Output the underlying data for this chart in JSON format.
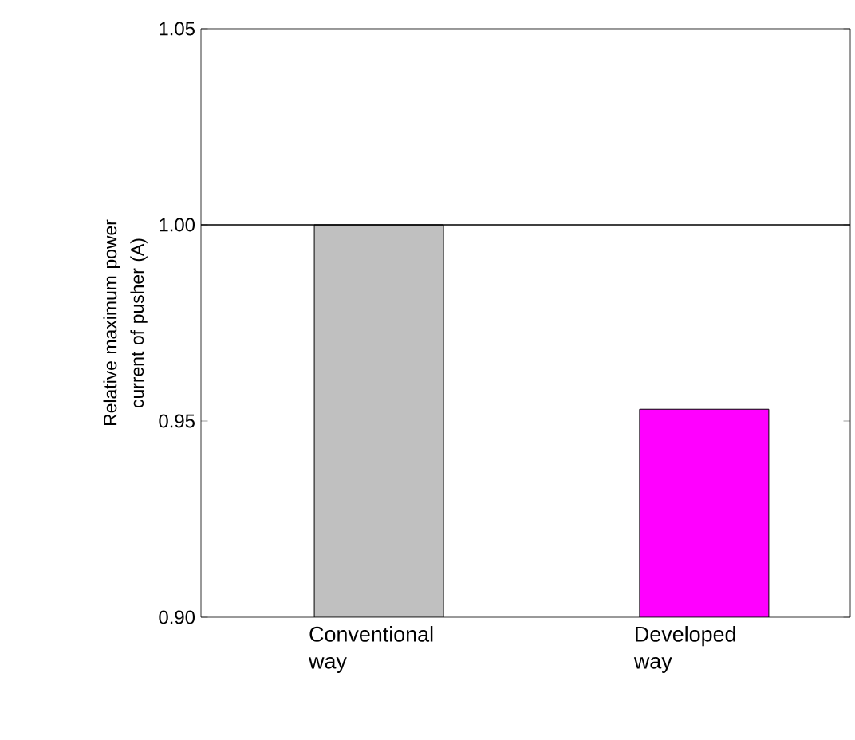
{
  "chart_data": {
    "type": "bar",
    "ylabel": "Relative maximum power current of pusher (A)",
    "categories": [
      "Conventional way",
      "Developed way"
    ],
    "values": [
      1.0,
      0.953
    ],
    "colors": [
      "#c0c0c0",
      "#ff00ff"
    ],
    "ylim": [
      0.9,
      1.05
    ],
    "yticks": [
      {
        "value": 0.9,
        "label": "0.90"
      },
      {
        "value": 0.95,
        "label": "0.95"
      },
      {
        "value": 1.0,
        "label": "1.00"
      },
      {
        "value": 1.05,
        "label": "1.05"
      }
    ],
    "ref_lines": [
      {
        "axis": "y",
        "value": 1.0,
        "color": "#000000"
      }
    ],
    "grid": false
  }
}
